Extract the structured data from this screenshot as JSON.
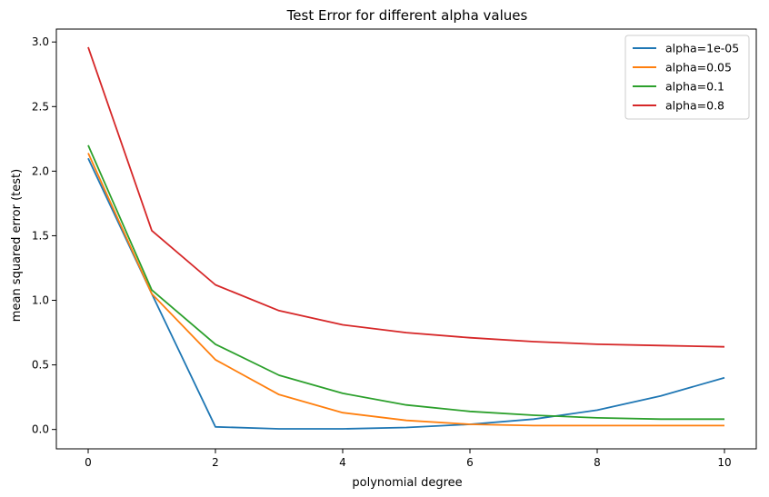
{
  "chart_data": {
    "type": "line",
    "title": "Test Error for different alpha values",
    "xlabel": "polynomial degree",
    "ylabel": "mean squared error (test)",
    "xlim": [
      -0.5,
      10.5
    ],
    "ylim": [
      -0.15,
      3.1
    ],
    "xticks": [
      0,
      2,
      4,
      6,
      8,
      10
    ],
    "yticks": [
      0.0,
      0.5,
      1.0,
      1.5,
      2.0,
      2.5,
      3.0
    ],
    "ytick_labels": [
      "0.0",
      "0.5",
      "1.0",
      "1.5",
      "2.0",
      "2.5",
      "3.0"
    ],
    "grid": false,
    "legend_position": "top-right",
    "x": [
      0,
      1,
      2,
      3,
      4,
      5,
      6,
      7,
      8,
      9,
      10
    ],
    "series": [
      {
        "name": "alpha=1e-05",
        "color": "#1f77b4",
        "values": [
          2.1,
          1.05,
          0.02,
          0.005,
          0.005,
          0.015,
          0.04,
          0.08,
          0.15,
          0.26,
          0.4
        ]
      },
      {
        "name": "alpha=0.05",
        "color": "#ff7f0e",
        "values": [
          2.14,
          1.05,
          0.54,
          0.27,
          0.13,
          0.07,
          0.04,
          0.03,
          0.03,
          0.03,
          0.03
        ]
      },
      {
        "name": "alpha=0.1",
        "color": "#2ca02c",
        "values": [
          2.2,
          1.08,
          0.66,
          0.42,
          0.28,
          0.19,
          0.14,
          0.11,
          0.09,
          0.08,
          0.08
        ]
      },
      {
        "name": "alpha=0.8",
        "color": "#d62728",
        "values": [
          2.96,
          1.54,
          1.12,
          0.92,
          0.81,
          0.75,
          0.71,
          0.68,
          0.66,
          0.65,
          0.64
        ]
      }
    ]
  }
}
